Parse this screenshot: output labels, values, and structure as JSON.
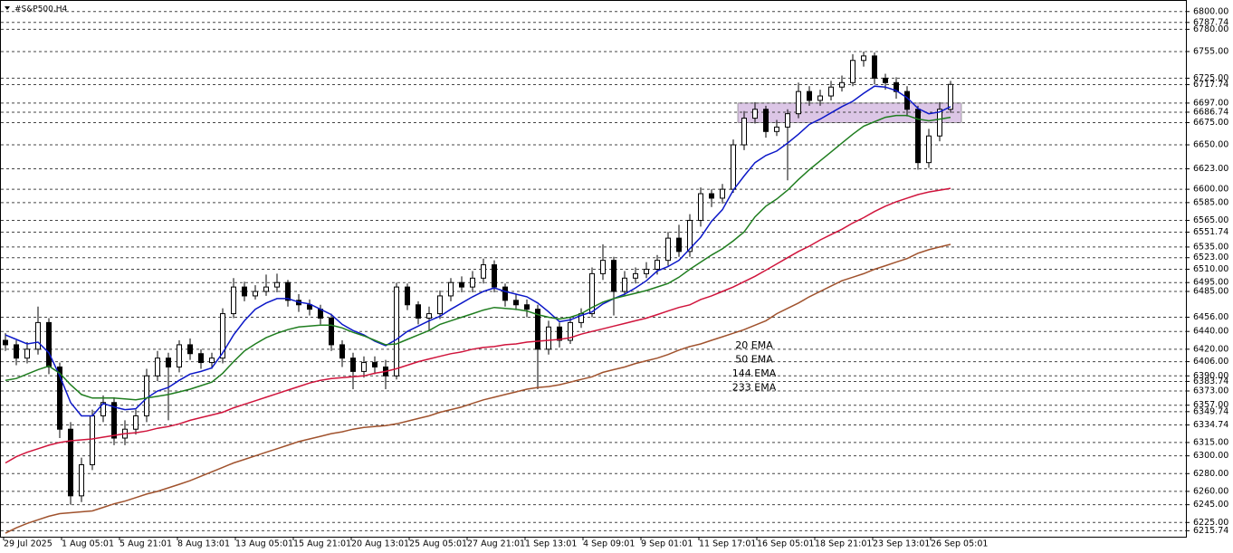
{
  "chart_data": {
    "type": "candlestick",
    "title": "#S&P500,H4",
    "x_labels": [
      "29 Jul 2025",
      "1 Aug 05:01",
      "5 Aug 21:01",
      "8 Aug 13:01",
      "13 Aug 05:01",
      "15 Aug 21:01",
      "20 Aug 13:01",
      "25 Aug 05:01",
      "27 Aug 21:01",
      "1 Sep 13:01",
      "4 Sep 09:01",
      "9 Sep 01:01",
      "11 Sep 17:01",
      "16 Sep 05:01",
      "18 Sep 21:01",
      "23 Sep 13:01",
      "26 Sep 05:01"
    ],
    "ylim": [
      6209,
      6813
    ],
    "yticks": [
      {
        "value": 6800,
        "label": "6800.00"
      },
      {
        "value": 6787.74,
        "label": "6787.74"
      },
      {
        "value": 6780,
        "label": "6780.00"
      },
      {
        "value": 6755,
        "label": "6755.00"
      },
      {
        "value": 6725,
        "label": "6725.00"
      },
      {
        "value": 6717.74,
        "label": "6717.74"
      },
      {
        "value": 6697,
        "label": "6697.00"
      },
      {
        "value": 6686.74,
        "label": "6686.74"
      },
      {
        "value": 6675,
        "label": "6675.00"
      },
      {
        "value": 6650,
        "label": "6650.00"
      },
      {
        "value": 6623,
        "label": "6623.00"
      },
      {
        "value": 6600,
        "label": "6600.00"
      },
      {
        "value": 6585,
        "label": "6585.00"
      },
      {
        "value": 6565,
        "label": "6565.00"
      },
      {
        "value": 6551.74,
        "label": "6551.74"
      },
      {
        "value": 6535,
        "label": "6535.00"
      },
      {
        "value": 6523,
        "label": "6523.00"
      },
      {
        "value": 6510,
        "label": "6510.00"
      },
      {
        "value": 6495,
        "label": "6495.00"
      },
      {
        "value": 6485,
        "label": "6485.00"
      },
      {
        "value": 6456,
        "label": "6456.00"
      },
      {
        "value": 6440,
        "label": "6440.00"
      },
      {
        "value": 6420,
        "label": "6420.00"
      },
      {
        "value": 6406,
        "label": "6406.00"
      },
      {
        "value": 6390,
        "label": "6390.00"
      },
      {
        "value": 6383.74,
        "label": "6383.74"
      },
      {
        "value": 6373,
        "label": "6373.00"
      },
      {
        "value": 6357,
        "label": "6357.00"
      },
      {
        "value": 6349.74,
        "label": "6349.74"
      },
      {
        "value": 6334.74,
        "label": "6334.74"
      },
      {
        "value": 6315,
        "label": "6315.00"
      },
      {
        "value": 6300,
        "label": "6300.00"
      },
      {
        "value": 6280,
        "label": "6280.00"
      },
      {
        "value": 6260,
        "label": "6260.00"
      },
      {
        "value": 6245,
        "label": "6245.00"
      },
      {
        "value": 6225,
        "label": "6225.00"
      },
      {
        "value": 6215.74,
        "label": "6215.74"
      }
    ],
    "grid": true,
    "zone": {
      "color": "#dcc6e6",
      "range": [
        6675,
        6697
      ]
    },
    "ohlc": {
      "open": [
        6430,
        6425,
        6410,
        6420,
        6450,
        6400,
        6330,
        6255,
        6290,
        6345,
        6360,
        6320,
        6330,
        6345,
        6390,
        6410,
        6400,
        6425,
        6415,
        6405,
        6410,
        6460,
        6490,
        6480,
        6485,
        6490,
        6495,
        6475,
        6470,
        6465,
        6455,
        6425,
        6410,
        6395,
        6405,
        6400,
        6390,
        6490,
        6470,
        6455,
        6460,
        6480,
        6495,
        6490,
        6500,
        6515,
        6490,
        6475,
        6470,
        6465,
        6420,
        6445,
        6430,
        6450,
        6460,
        6505,
        6520,
        6485,
        6500,
        6505,
        6510,
        6520,
        6545,
        6530,
        6565,
        6595,
        6590,
        6600,
        6650,
        6680,
        6690,
        6665,
        6670,
        6685,
        6710,
        6700,
        6705,
        6715,
        6720,
        6745,
        6750,
        6725,
        6720,
        6710,
        6690,
        6630,
        6660,
        6690
      ],
      "high": [
        6438,
        6430,
        6428,
        6468,
        6455,
        6405,
        6338,
        6298,
        6352,
        6368,
        6366,
        6340,
        6352,
        6398,
        6418,
        6416,
        6430,
        6432,
        6420,
        6416,
        6466,
        6500,
        6496,
        6492,
        6504,
        6505,
        6498,
        6482,
        6476,
        6470,
        6460,
        6430,
        6416,
        6412,
        6412,
        6408,
        6495,
        6494,
        6474,
        6468,
        6486,
        6500,
        6502,
        6508,
        6522,
        6520,
        6494,
        6482,
        6476,
        6470,
        6452,
        6450,
        6456,
        6466,
        6512,
        6538,
        6524,
        6508,
        6512,
        6518,
        6526,
        6552,
        6560,
        6572,
        6602,
        6600,
        6606,
        6656,
        6688,
        6698,
        6694,
        6678,
        6690,
        6720,
        6716,
        6712,
        6722,
        6728,
        6752,
        6755,
        6754,
        6730,
        6726,
        6716,
        6694,
        6668,
        6698,
        6722
      ],
      "low": [
        6418,
        6402,
        6404,
        6414,
        6392,
        6320,
        6245,
        6248,
        6284,
        6338,
        6312,
        6312,
        6324,
        6338,
        6384,
        6340,
        6394,
        6408,
        6398,
        6398,
        6404,
        6455,
        6474,
        6476,
        6480,
        6484,
        6468,
        6462,
        6458,
        6448,
        6418,
        6400,
        6375,
        6388,
        6392,
        6375,
        6386,
        6464,
        6448,
        6440,
        6454,
        6474,
        6484,
        6484,
        6494,
        6484,
        6468,
        6464,
        6456,
        6375,
        6414,
        6422,
        6426,
        6444,
        6456,
        6498,
        6458,
        6480,
        6494,
        6500,
        6504,
        6514,
        6524,
        6524,
        6558,
        6580,
        6584,
        6596,
        6644,
        6674,
        6658,
        6660,
        6610,
        6680,
        6694,
        6694,
        6700,
        6710,
        6716,
        6738,
        6718,
        6712,
        6702,
        6682,
        6622,
        6624,
        6654,
        6686
      ],
      "close": [
        6425,
        6410,
        6420,
        6450,
        6400,
        6330,
        6255,
        6290,
        6345,
        6360,
        6320,
        6330,
        6345,
        6390,
        6410,
        6400,
        6425,
        6415,
        6405,
        6410,
        6460,
        6490,
        6480,
        6485,
        6490,
        6495,
        6475,
        6470,
        6465,
        6455,
        6425,
        6410,
        6395,
        6405,
        6400,
        6390,
        6490,
        6470,
        6455,
        6460,
        6480,
        6495,
        6490,
        6500,
        6515,
        6490,
        6475,
        6470,
        6465,
        6420,
        6445,
        6430,
        6450,
        6460,
        6505,
        6520,
        6485,
        6500,
        6505,
        6510,
        6520,
        6545,
        6530,
        6565,
        6595,
        6590,
        6600,
        6650,
        6680,
        6690,
        6665,
        6670,
        6685,
        6710,
        6700,
        6705,
        6715,
        6720,
        6745,
        6750,
        6725,
        6720,
        6710,
        6690,
        6630,
        6660,
        6690,
        6718
      ]
    },
    "series": [
      {
        "name": "20 EMA",
        "color": "#0c18c8",
        "values": [
          6436,
          6431,
          6426,
          6428,
          6416,
          6390,
          6360,
          6345,
          6345,
          6359,
          6355,
          6352,
          6353,
          6365,
          6373,
          6377,
          6385,
          6392,
          6395,
          6399,
          6416,
          6436,
          6452,
          6465,
          6472,
          6477,
          6477,
          6473,
          6471,
          6465,
          6459,
          6448,
          6441,
          6436,
          6429,
          6424,
          6431,
          6440,
          6446,
          6452,
          6457,
          6465,
          6472,
          6479,
          6485,
          6489,
          6485,
          6482,
          6479,
          6472,
          6462,
          6451,
          6453,
          6458,
          6462,
          6471,
          6477,
          6482,
          6489,
          6497,
          6508,
          6513,
          6520,
          6533,
          6546,
          6564,
          6577,
          6599,
          6615,
          6630,
          6638,
          6643,
          6652,
          6662,
          6673,
          6679,
          6686,
          6693,
          6699,
          6708,
          6716,
          6715,
          6711,
          6703,
          6691,
          6685,
          6687,
          6693
        ]
      },
      {
        "name": "50 EMA",
        "color": "#1f7d1f",
        "values": [
          6385,
          6387,
          6392,
          6397,
          6401,
          6393,
          6380,
          6369,
          6365,
          6365,
          6365,
          6364,
          6363,
          6365,
          6367,
          6369,
          6372,
          6375,
          6379,
          6383,
          6393,
          6406,
          6418,
          6426,
          6433,
          6438,
          6442,
          6445,
          6446,
          6447,
          6447,
          6444,
          6439,
          6435,
          6430,
          6425,
          6426,
          6431,
          6436,
          6441,
          6448,
          6452,
          6456,
          6460,
          6464,
          6467,
          6466,
          6465,
          6463,
          6459,
          6456,
          6454,
          6456,
          6460,
          6467,
          6473,
          6477,
          6480,
          6483,
          6486,
          6490,
          6494,
          6501,
          6510,
          6518,
          6526,
          6533,
          6542,
          6552,
          6569,
          6581,
          6589,
          6599,
          6611,
          6622,
          6632,
          6642,
          6652,
          6662,
          6671,
          6676,
          6681,
          6683,
          6683,
          6679,
          6677,
          6679,
          6681
        ]
      },
      {
        "name": "144 EMA",
        "color": "#d0143c",
        "values": [
          6292,
          6299,
          6304,
          6308,
          6312,
          6315,
          6317,
          6318,
          6319,
          6321,
          6323,
          6325,
          6326,
          6328,
          6331,
          6333,
          6336,
          6340,
          6343,
          6346,
          6349,
          6354,
          6358,
          6362,
          6366,
          6370,
          6374,
          6378,
          6382,
          6385,
          6387,
          6388,
          6389,
          6390,
          6393,
          6395,
          6398,
          6402,
          6406,
          6409,
          6412,
          6415,
          6417,
          6420,
          6422,
          6423,
          6425,
          6426,
          6428,
          6429,
          6430,
          6431,
          6433,
          6437,
          6440,
          6443,
          6446,
          6449,
          6452,
          6455,
          6459,
          6463,
          6467,
          6470,
          6476,
          6480,
          6485,
          6490,
          6496,
          6502,
          6509,
          6516,
          6523,
          6530,
          6536,
          6543,
          6549,
          6555,
          6562,
          6568,
          6575,
          6581,
          6586,
          6590,
          6594,
          6597,
          6599,
          6601
        ]
      },
      {
        "name": "233 EMA",
        "color": "#a0522d",
        "values": [
          6213,
          6219,
          6224,
          6228,
          6232,
          6235,
          6236,
          6237,
          6238,
          6242,
          6246,
          6249,
          6253,
          6257,
          6260,
          6264,
          6268,
          6272,
          6277,
          6282,
          6287,
          6292,
          6296,
          6300,
          6304,
          6308,
          6312,
          6316,
          6319,
          6322,
          6325,
          6327,
          6330,
          6332,
          6333,
          6334,
          6336,
          6339,
          6342,
          6345,
          6349,
          6352,
          6355,
          6359,
          6363,
          6366,
          6369,
          6372,
          6375,
          6377,
          6378,
          6380,
          6383,
          6386,
          6389,
          6394,
          6397,
          6400,
          6404,
          6407,
          6410,
          6414,
          6419,
          6423,
          6426,
          6430,
          6434,
          6438,
          6442,
          6447,
          6452,
          6460,
          6466,
          6472,
          6479,
          6485,
          6491,
          6497,
          6501,
          6505,
          6510,
          6514,
          6518,
          6522,
          6528,
          6532,
          6535,
          6538
        ]
      }
    ]
  }
}
